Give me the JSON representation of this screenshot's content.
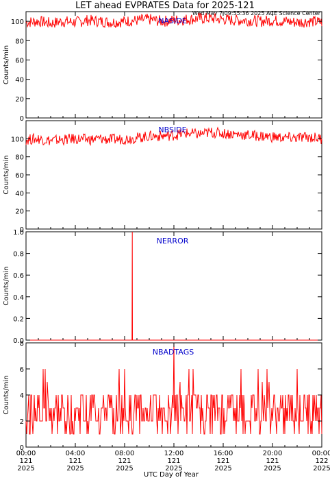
{
  "title": "LET ahead EVPRATES Data for 2025-121",
  "timestamp": "Wed May  7 09:55:36 2025 ACE Science Center",
  "xlabel": "UTC Day of Year",
  "colors": {
    "series": "#ff0000",
    "label": "#0000cc",
    "axis": "#000000"
  },
  "x_ticks": [
    {
      "time": "00:00",
      "doy": "121",
      "year": "2025"
    },
    {
      "time": "04:00",
      "doy": "121",
      "year": "2025"
    },
    {
      "time": "08:00",
      "doy": "121",
      "year": "2025"
    },
    {
      "time": "12:00",
      "doy": "121",
      "year": "2025"
    },
    {
      "time": "16:00",
      "doy": "121",
      "year": "2025"
    },
    {
      "time": "20:00",
      "doy": "121",
      "year": "2025"
    },
    {
      "time": "00:00",
      "doy": "122",
      "year": "2025"
    }
  ],
  "chart_data": [
    {
      "type": "line",
      "label": "NASIDE",
      "ylabel": "Counts/min",
      "xlim": [
        0,
        24
      ],
      "ylim": [
        0,
        110
      ],
      "y_ticks": [
        "0",
        "20",
        "40",
        "60",
        "80",
        "100"
      ],
      "x": [
        0,
        1,
        2,
        3,
        4,
        5,
        6,
        7,
        8,
        9,
        10,
        11,
        12,
        13,
        14,
        15,
        16,
        17,
        18,
        19,
        20,
        21,
        22,
        23,
        24
      ],
      "values": [
        99,
        100,
        98,
        100,
        99,
        101,
        100,
        99,
        100,
        101,
        102,
        100,
        101,
        102,
        103,
        103,
        102,
        101,
        101,
        100,
        101,
        100,
        99,
        100,
        99
      ]
    },
    {
      "type": "line",
      "label": "NBSIDE",
      "ylabel": "Counts/min",
      "xlim": [
        0,
        24
      ],
      "ylim": [
        0,
        120
      ],
      "y_ticks": [
        "0",
        "20",
        "40",
        "60",
        "80",
        "100"
      ],
      "x": [
        0,
        1,
        2,
        3,
        4,
        5,
        6,
        7,
        8,
        9,
        10,
        11,
        12,
        13,
        14,
        15,
        16,
        17,
        18,
        19,
        20,
        21,
        22,
        23,
        24
      ],
      "values": [
        99,
        100,
        98,
        99,
        100,
        99,
        100,
        99,
        100,
        101,
        103,
        103,
        104,
        106,
        105,
        107,
        106,
        105,
        104,
        103,
        102,
        101,
        101,
        102,
        100
      ]
    },
    {
      "type": "line",
      "label": "NERROR",
      "ylabel": "Counts/min",
      "xlim": [
        0,
        24
      ],
      "ylim": [
        0,
        1.0
      ],
      "y_ticks": [
        "0.0",
        "0.2",
        "0.4",
        "0.6",
        "0.8",
        "1.0"
      ],
      "x": [
        0,
        8.6,
        8.62,
        8.64,
        24
      ],
      "values": [
        0,
        0,
        1,
        0,
        0
      ]
    },
    {
      "type": "line",
      "label": "NBADTAGS",
      "ylabel": "Counts/min",
      "xlim": [
        0,
        24
      ],
      "ylim": [
        0,
        8
      ],
      "y_ticks": [
        "0",
        "2",
        "4",
        "6",
        "8"
      ],
      "x": [
        0,
        0.5,
        1,
        1.5,
        2,
        2.5,
        3,
        3.5,
        4,
        4.5,
        5,
        5.5,
        6,
        6.5,
        7,
        7.5,
        8,
        8.5,
        9,
        9.5,
        10,
        10.5,
        11,
        11.5,
        12,
        12.5,
        13,
        13.5,
        14,
        14.5,
        15,
        15.5,
        16,
        16.5,
        17,
        17.5,
        18,
        18.5,
        19,
        19.5,
        20,
        20.5,
        21,
        21.5,
        22,
        22.5,
        23,
        23.5,
        24
      ],
      "values": [
        2,
        5,
        1,
        3,
        2,
        4,
        1,
        3,
        2,
        3,
        4,
        2,
        1,
        3,
        2,
        4,
        6,
        2,
        1,
        3,
        2,
        4,
        5,
        3,
        8,
        2,
        3,
        1,
        4,
        2,
        6,
        3,
        1,
        2,
        5,
        3,
        2,
        4,
        1,
        3,
        2,
        3,
        4,
        1,
        6,
        3,
        2,
        3,
        1
      ]
    }
  ]
}
